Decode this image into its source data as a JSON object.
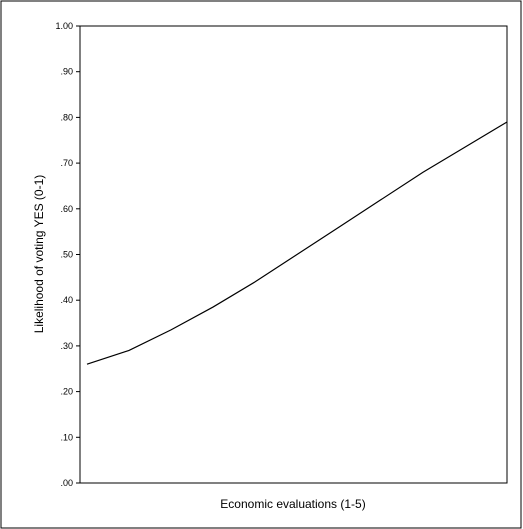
{
  "chart_data": {
    "type": "line",
    "title": "",
    "xlabel": "Economic evaluations (1-5)",
    "ylabel": "Likelihood of voting YES (0-1)",
    "ylim": [
      0,
      1
    ],
    "xlim": [
      1,
      5
    ],
    "y_ticks": [
      ".00",
      ".10",
      ".20",
      ".30",
      ".40",
      ".50",
      ".60",
      ".70",
      ".80",
      ".90",
      "1.00"
    ],
    "grid": false,
    "legend": "none",
    "series": [
      {
        "x": [
          1.0,
          1.4,
          1.8,
          2.2,
          2.6,
          3.0,
          3.4,
          3.8,
          4.2,
          4.6,
          5.0
        ],
        "y": [
          0.26,
          0.29,
          0.335,
          0.385,
          0.44,
          0.5,
          0.56,
          0.62,
          0.68,
          0.735,
          0.79
        ]
      }
    ],
    "colors": {
      "line": "#000000",
      "background": "#ffffff",
      "frame": "#000000"
    }
  }
}
